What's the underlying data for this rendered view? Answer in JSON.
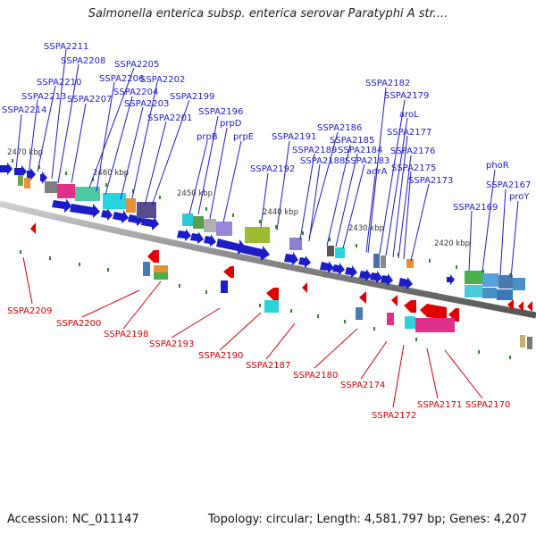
{
  "title": "Salmonella enterica subsp. enterica serovar Paratyphi A str....",
  "accession": "Accession: NC_011147",
  "topology": "Topology: circular; Length: 4,581,797 bp; Genes: 4,207",
  "kbp_labels": [
    "2470 kbp",
    "2460 kbp",
    "2450 kbp",
    "2440 kbp",
    "2430 kbp",
    "2420 kbp"
  ],
  "forward_genes": [
    "SSPA2211",
    "SSPA2208",
    "SSPA2205",
    "SSPA2210",
    "SSPA2206",
    "SSPA2202",
    "SSPA2213",
    "SSPA2207",
    "SSPA2204",
    "SSPA2199",
    "SSPA2214",
    "SSPA2203",
    "SSPA2201",
    "SSPA2196",
    "prpD",
    "prpB",
    "prpE",
    "SSPA2191",
    "SSPA2192",
    "SSPA2186",
    "SSPA2189",
    "SSPA2185",
    "SSPA2188",
    "SSPA2184",
    "SSPA2183",
    "SSPA2182",
    "SSPA2179",
    "aroL",
    "SSPA2177",
    "adrA",
    "SSPA2176",
    "SSPA2175",
    "SSPA2173",
    "phoR",
    "SSPA2167",
    "SSPA2169",
    "proY"
  ],
  "reverse_genes": [
    "SSPA2209",
    "SSPA2200",
    "SSPA2198",
    "SSPA2193",
    "SSPA2190",
    "SSPA2187",
    "SSPA2180",
    "SSPA2174",
    "SSPA2172",
    "SSPA2171",
    "SSPA2170"
  ],
  "colors": {
    "forward": "#1c1cc8",
    "reverse": "#d40000",
    "backbone": "#888888",
    "tick": "#2a8a2a"
  }
}
